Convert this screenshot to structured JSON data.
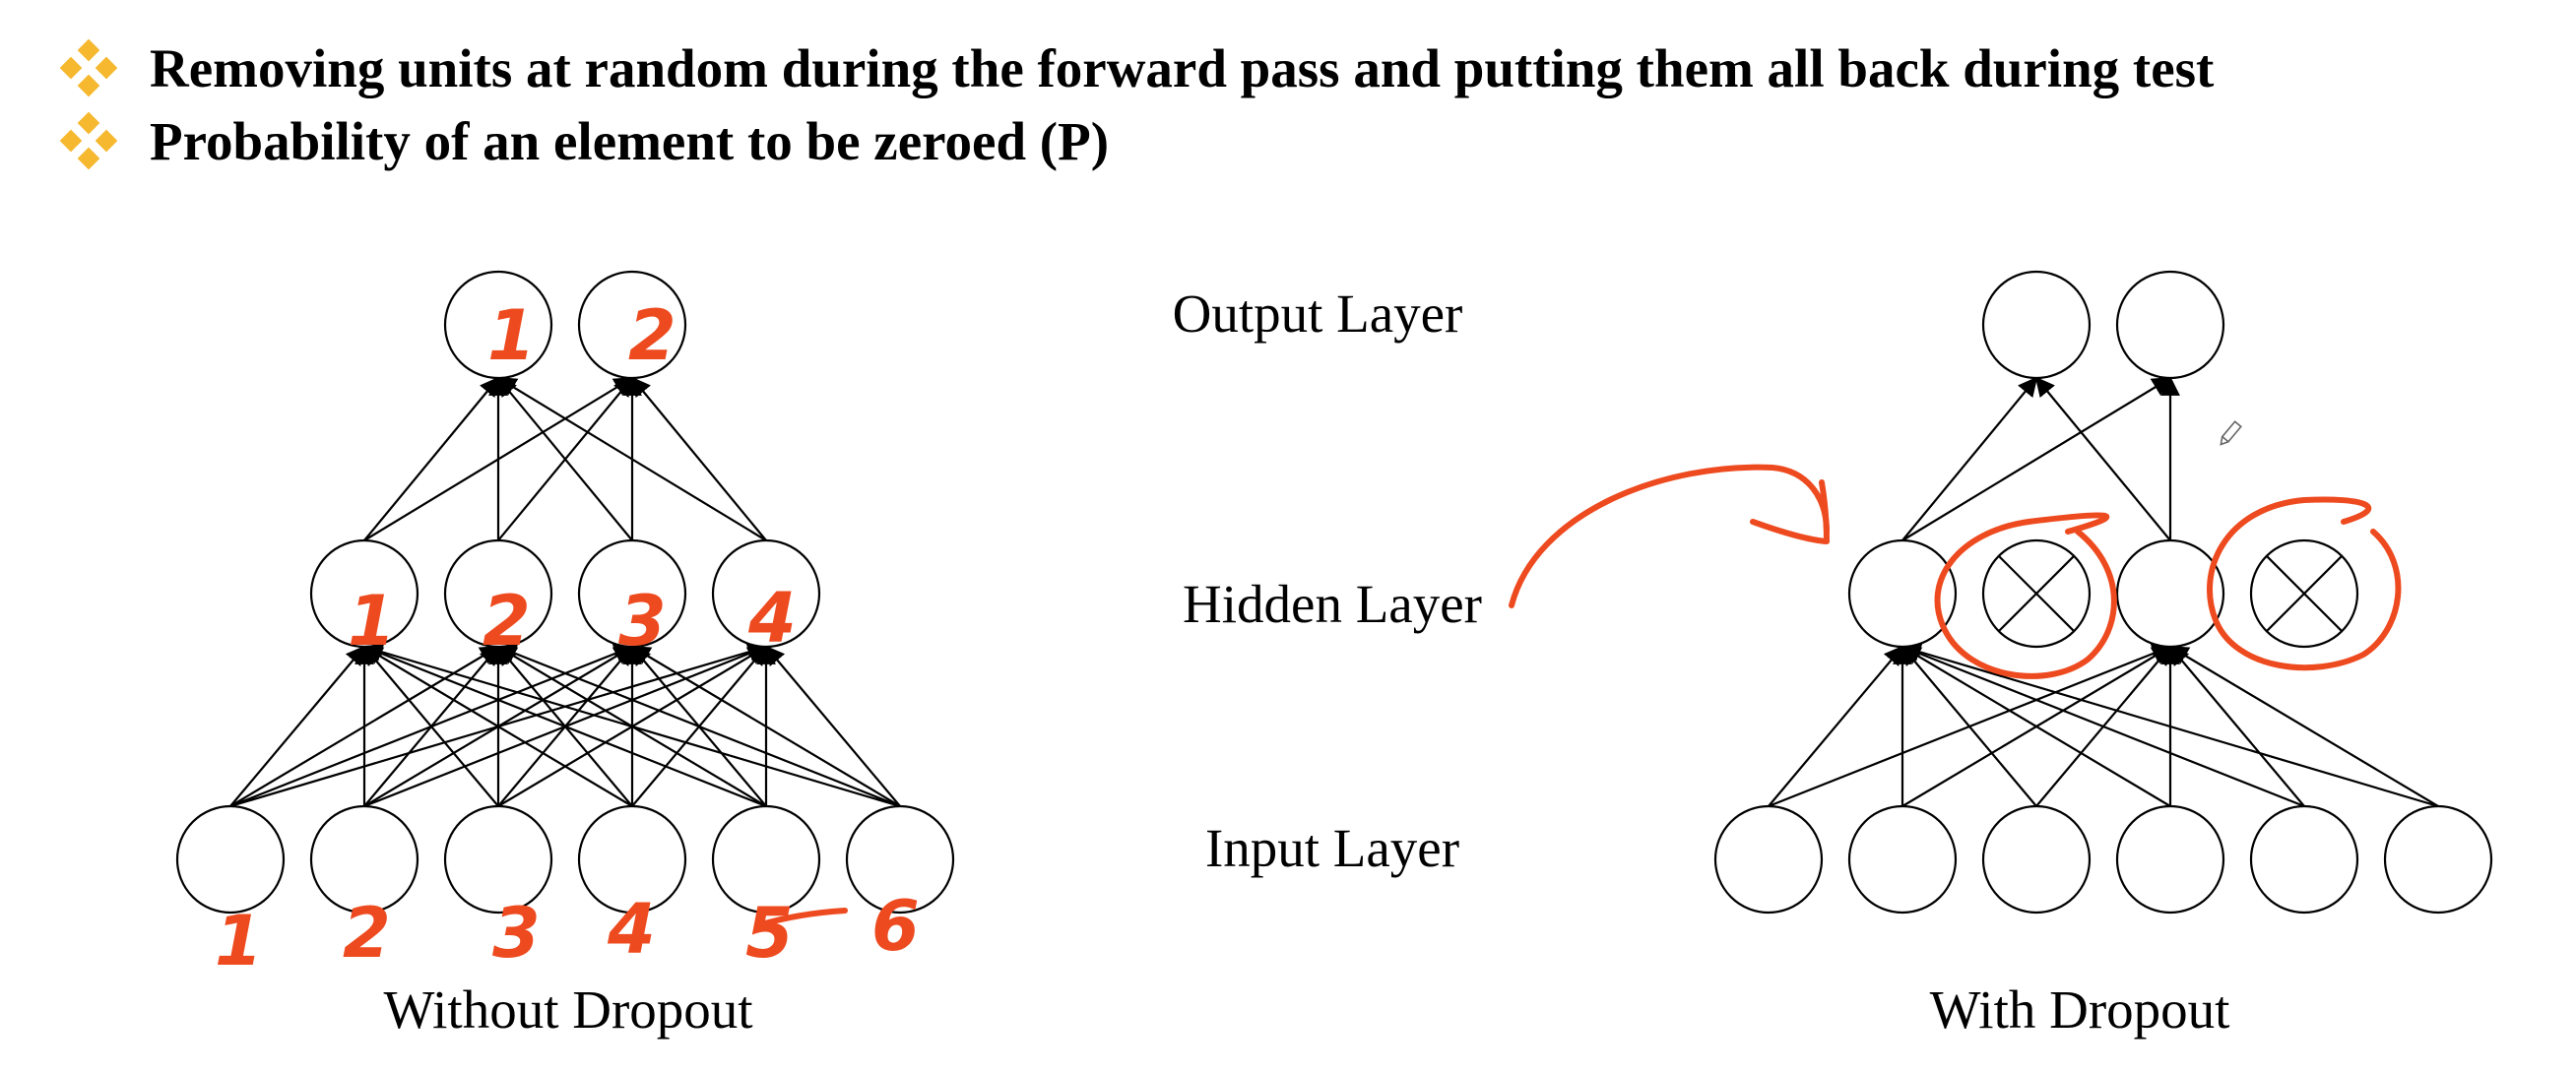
{
  "bullets": [
    {
      "icon": "diamond-bullet-icon",
      "text": "Removing units at random during the forward pass and putting them all back during test"
    },
    {
      "icon": "diamond-bullet-icon",
      "text": "Probability of an element to be zeroed (P)"
    }
  ],
  "accent_color": "#f5b82e",
  "annotation_color": "#ee4a1f",
  "layer_labels": {
    "output": "Output Layer",
    "hidden": "Hidden Layer",
    "input": "Input Layer"
  },
  "left_network": {
    "caption": "Without Dropout",
    "output_numbers": [
      "1",
      "2"
    ],
    "hidden_numbers": [
      "1",
      "2",
      "3",
      "4"
    ],
    "input_numbers": [
      "1",
      "2",
      "3",
      "4",
      "5",
      "6"
    ]
  },
  "right_network": {
    "caption": "With Dropout",
    "dropped_hidden_units": [
      2,
      4
    ]
  }
}
